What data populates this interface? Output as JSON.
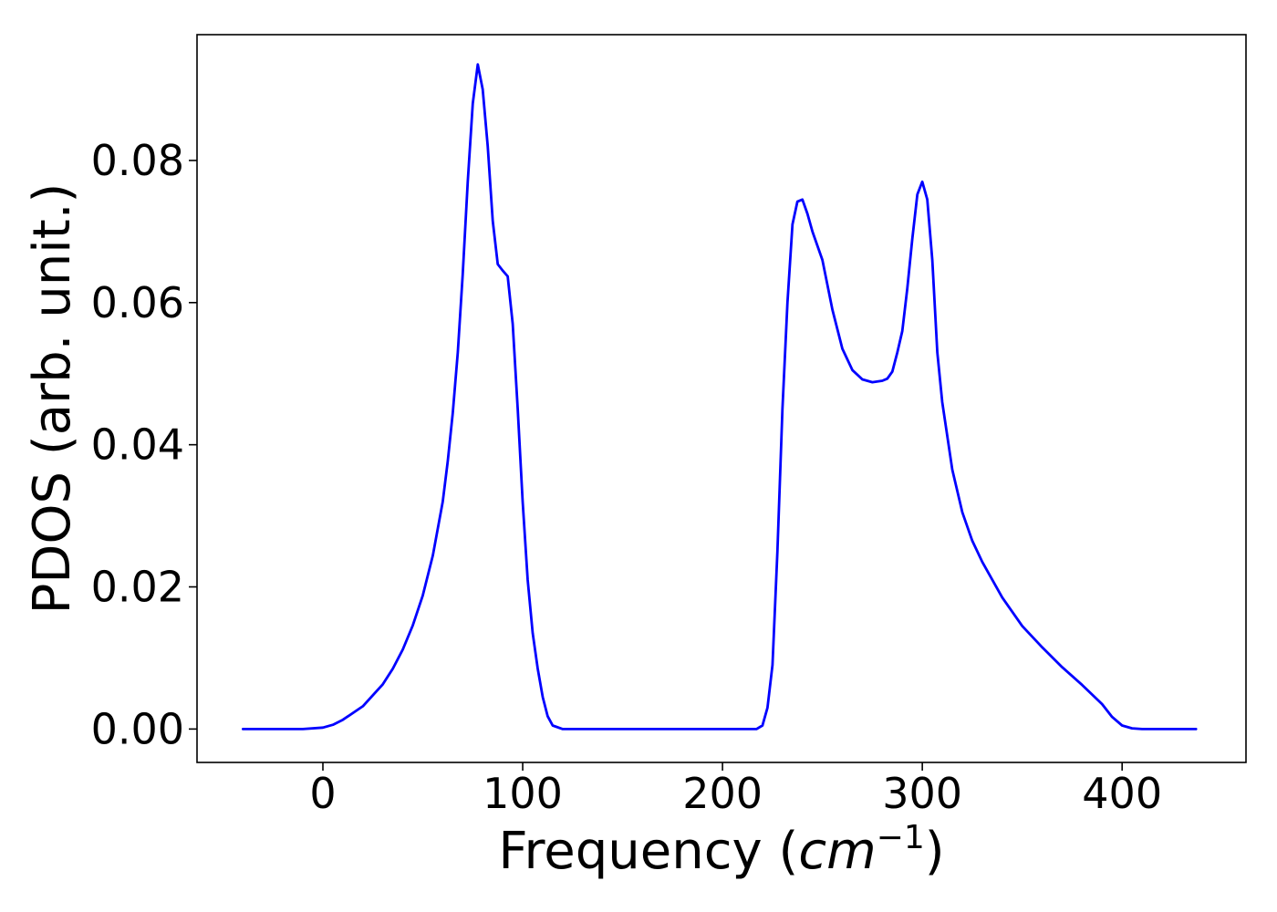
{
  "chart_data": {
    "type": "line",
    "title": "",
    "xlabel": "Frequency (cm⁻¹)",
    "xlabel_parts": {
      "prefix": "Frequency (",
      "unit_base": "cm",
      "unit_exp": "−1",
      "suffix": ")"
    },
    "ylabel": "PDOS (arb. unit.)",
    "xlim": [
      -63,
      462
    ],
    "ylim": [
      -0.0047,
      0.0977
    ],
    "xticks": [
      0,
      100,
      200,
      300,
      400
    ],
    "xtick_labels": [
      "0",
      "100",
      "200",
      "300",
      "400"
    ],
    "yticks": [
      0.0,
      0.02,
      0.04,
      0.06,
      0.08
    ],
    "ytick_labels": [
      "0.00",
      "0.02",
      "0.04",
      "0.06",
      "0.08"
    ],
    "grid": false,
    "legend": "none",
    "series": [
      {
        "color": "#0000ff",
        "x": [
          -40,
          -10,
          0,
          5,
          10,
          20,
          30,
          35,
          40,
          45,
          50,
          55,
          60,
          62.5,
          65,
          67.5,
          70,
          72.5,
          75,
          77.5,
          80,
          82.5,
          85,
          87.5,
          90,
          92.5,
          95,
          97.5,
          100,
          102.5,
          105,
          107.5,
          110,
          112.5,
          115,
          120,
          150,
          200,
          217,
          220,
          222.5,
          225,
          227.5,
          230,
          232.5,
          235,
          237.5,
          240,
          242.5,
          245,
          250,
          255,
          260,
          265,
          270,
          275,
          280,
          282.5,
          285,
          287.5,
          290,
          292.5,
          295,
          297.5,
          300,
          302.5,
          305,
          307.5,
          310,
          315,
          320,
          325,
          330,
          340,
          350,
          360,
          370,
          380,
          390,
          395,
          400,
          405,
          410,
          420,
          437
        ],
        "y": [
          0.0,
          0.0,
          0.0002,
          0.0006,
          0.0013,
          0.0032,
          0.0063,
          0.0085,
          0.0112,
          0.0146,
          0.0188,
          0.0244,
          0.032,
          0.0377,
          0.0445,
          0.053,
          0.064,
          0.077,
          0.088,
          0.0935,
          0.09,
          0.082,
          0.0715,
          0.0654,
          0.0645,
          0.0637,
          0.057,
          0.045,
          0.032,
          0.021,
          0.0135,
          0.0085,
          0.0045,
          0.0018,
          0.0005,
          0.0,
          0.0,
          0.0,
          0.0,
          0.0005,
          0.003,
          0.009,
          0.025,
          0.045,
          0.06,
          0.071,
          0.0742,
          0.0745,
          0.0725,
          0.07,
          0.066,
          0.059,
          0.0535,
          0.0505,
          0.0492,
          0.0488,
          0.049,
          0.0493,
          0.0503,
          0.053,
          0.056,
          0.062,
          0.069,
          0.0752,
          0.077,
          0.0745,
          0.066,
          0.053,
          0.046,
          0.0365,
          0.0305,
          0.0265,
          0.0235,
          0.0185,
          0.0145,
          0.0115,
          0.0087,
          0.0062,
          0.0035,
          0.0017,
          0.0005,
          0.0001,
          0.0,
          0.0,
          0.0
        ]
      }
    ]
  }
}
